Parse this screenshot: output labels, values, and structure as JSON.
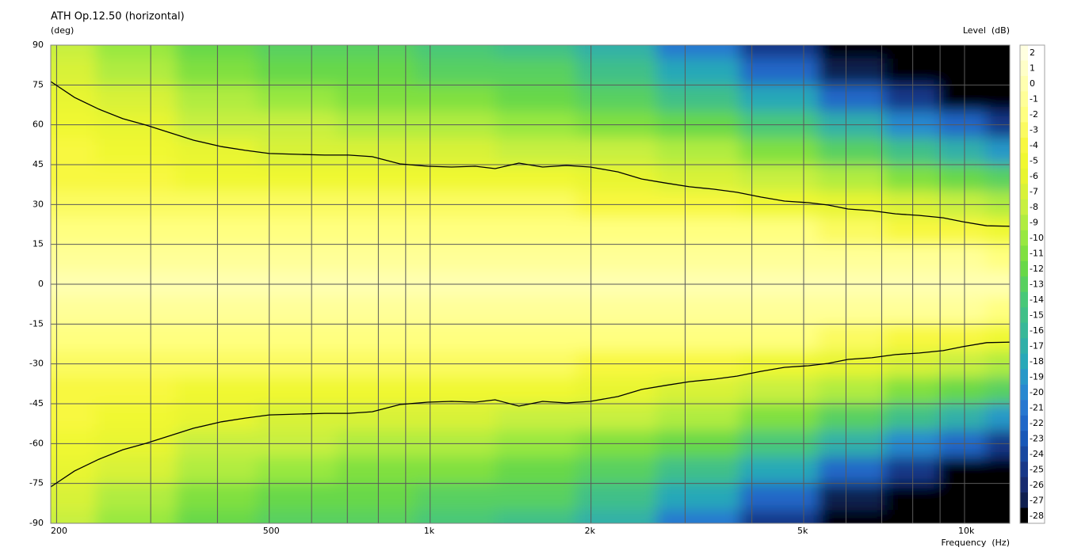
{
  "chart_data": {
    "type": "contour",
    "title": "ATH Op.12.50 (horizontal)",
    "y_label": "(deg)",
    "x_label": "Frequency  (Hz)",
    "colorbar_label": "Level  (dB)",
    "x_scale": "log",
    "xlim": [
      195,
      12150
    ],
    "ylim": [
      -90,
      90
    ],
    "xticks": [
      200,
      500,
      {
        "value": 1000,
        "label": "1k"
      },
      {
        "value": 2000,
        "label": "2k"
      },
      {
        "value": 5000,
        "label": "5k"
      },
      {
        "value": 10000,
        "label": "10k"
      }
    ],
    "x_minor_grid": [
      300,
      400,
      600,
      700,
      800,
      900,
      3000,
      4000,
      6000,
      7000,
      8000,
      9000
    ],
    "yticks": [
      -90,
      -75,
      -60,
      -45,
      -30,
      -15,
      0,
      15,
      30,
      45,
      60,
      75,
      90
    ],
    "grid": true,
    "x": [
      200,
      280,
      400,
      560,
      800,
      1100,
      1600,
      2200,
      3200,
      4500,
      6300,
      8000,
      10000,
      12000
    ],
    "y": [
      90,
      80,
      70,
      60,
      50,
      40,
      30,
      20,
      10,
      0,
      -10,
      -20,
      -30,
      -40,
      -50,
      -60,
      -70,
      -80,
      -90
    ],
    "z": [
      [
        -8,
        -10,
        -12,
        -12.5,
        -13,
        -13.5,
        -15,
        -17,
        -21,
        -25,
        -29,
        -30,
        -30,
        -30
      ],
      [
        -6.5,
        -8.5,
        -10.5,
        -11.5,
        -12,
        -12.5,
        -13,
        -15,
        -18,
        -22,
        -27,
        -29,
        -30,
        -30
      ],
      [
        -5.5,
        -7,
        -9,
        -10,
        -10.5,
        -11,
        -11.5,
        -13,
        -15,
        -18,
        -22,
        -25,
        -28,
        -29
      ],
      [
        -5,
        -5.7,
        -7.5,
        -8,
        -8.5,
        -9,
        -9.5,
        -10.5,
        -12,
        -14,
        -17,
        -20,
        -22,
        -25
      ],
      [
        -4,
        -4.5,
        -5.8,
        -6.2,
        -6.5,
        -7,
        -7.2,
        -8,
        -9,
        -10.5,
        -13,
        -15,
        -17,
        -19
      ],
      [
        -3.5,
        -3.5,
        -4.5,
        -4.5,
        -4.7,
        -5,
        -5,
        -5.5,
        -6.5,
        -7.5,
        -9,
        -10.5,
        -12,
        -13
      ],
      [
        -2.5,
        -2.5,
        -3,
        -3,
        -3,
        -3,
        -3,
        -3.5,
        -4,
        -4.5,
        -6,
        -7,
        -8,
        -9
      ],
      [
        -1.5,
        -1.5,
        -1.5,
        -1.5,
        -1.5,
        -1.5,
        -1.5,
        -1.5,
        -2,
        -2,
        -3,
        -3.5,
        -4,
        -4.5
      ],
      [
        -0.5,
        -0.5,
        -0.5,
        -0.5,
        -0.5,
        -0.5,
        -0.5,
        -0.5,
        -0.5,
        -0.5,
        -1,
        -1,
        -1,
        -1.5
      ],
      [
        0,
        0,
        0,
        0,
        0,
        0,
        0,
        0,
        0,
        0,
        0,
        0,
        0,
        0
      ],
      [
        -0.5,
        -0.5,
        -0.5,
        -0.5,
        -0.5,
        -0.5,
        -0.5,
        -0.5,
        -0.5,
        -0.5,
        -1,
        -1,
        -1,
        -1.5
      ],
      [
        -1.5,
        -1.5,
        -1.5,
        -1.5,
        -1.5,
        -1.5,
        -1.5,
        -1.5,
        -2,
        -2,
        -3,
        -3.5,
        -4,
        -4.5
      ],
      [
        -2.5,
        -2.5,
        -3,
        -3,
        -3,
        -3,
        -3,
        -3.5,
        -4,
        -4.5,
        -6,
        -7,
        -8,
        -9
      ],
      [
        -3.5,
        -3.5,
        -4.5,
        -4.5,
        -4.7,
        -5,
        -5,
        -5.5,
        -6.5,
        -7.5,
        -9,
        -10.5,
        -12,
        -13
      ],
      [
        -4,
        -4.5,
        -5.8,
        -6.2,
        -6.5,
        -7,
        -7.2,
        -8,
        -9,
        -10.5,
        -13,
        -15,
        -17,
        -19
      ],
      [
        -5,
        -5.7,
        -7.5,
        -8,
        -8.5,
        -9,
        -9.5,
        -10.5,
        -12,
        -14,
        -17,
        -20,
        -22,
        -25
      ],
      [
        -5.5,
        -7,
        -9,
        -10,
        -10.5,
        -11,
        -11.5,
        -13,
        -15,
        -18,
        -22,
        -25,
        -28,
        -29
      ],
      [
        -6.5,
        -8.5,
        -10.5,
        -11.5,
        -12,
        -12.5,
        -13,
        -15,
        -18,
        -22,
        -27,
        -29,
        -30,
        -30
      ],
      [
        -8,
        -10,
        -12,
        -12.5,
        -13,
        -13.5,
        -15,
        -17,
        -21,
        -25,
        -29,
        -30,
        -30,
        -30
      ]
    ],
    "colorbar": {
      "levels": [
        2,
        1,
        0,
        -1,
        -2,
        -3,
        -4,
        -5,
        -6,
        -7,
        -8,
        -9,
        -10,
        -11,
        -12,
        -13,
        -14,
        -15,
        -16,
        -17,
        -18,
        -19,
        -20,
        -21,
        -22,
        -23,
        -24,
        -25,
        -26,
        -27,
        -28
      ],
      "colors": [
        "#ffffe0",
        "#ffffc8",
        "#ffffb0",
        "#ffff98",
        "#ffff80",
        "#fbfb60",
        "#f8f840",
        "#f0f830",
        "#e8f530",
        "#d8f238",
        "#c8f040",
        "#b0ec40",
        "#98e840",
        "#80e040",
        "#68d848",
        "#58d060",
        "#48c878",
        "#40c088",
        "#38b898",
        "#30b0a8",
        "#28a8b8",
        "#2898c8",
        "#2888d0",
        "#2878d0",
        "#2068c8",
        "#1858b8",
        "#1848a0",
        "#183888",
        "#182c70",
        "#102050",
        "#000000"
      ]
    },
    "isolines": [
      {
        "color": "#000000",
        "x": [
          195,
          216,
          240,
          266,
          294,
          361,
          407,
          451,
          500,
          635,
          704,
          779,
          878,
          990,
          1097,
          1215,
          1323,
          1466,
          1624,
          1799,
          1994,
          2246,
          2489,
          2758,
          3056,
          3385,
          3751,
          4156,
          4605,
          5103,
          5556,
          6051,
          6705,
          7429,
          8232,
          9120,
          9931,
          11003,
          12150
        ],
        "y": [
          76.3,
          70.3,
          65.9,
          62.3,
          59.9,
          54.2,
          51.8,
          50.4,
          49.2,
          48.6,
          48.6,
          48,
          45.3,
          44.4,
          44.1,
          44.4,
          43.5,
          45.6,
          44.1,
          44.7,
          44.1,
          42.3,
          39.6,
          38.1,
          36.7,
          35.8,
          34.6,
          32.8,
          31.3,
          30.7,
          29.8,
          28.3,
          27.7,
          26.5,
          25.9,
          25,
          23.5,
          22,
          21.8
        ]
      },
      {
        "color": "#000000",
        "x": [
          195,
          216,
          240,
          266,
          294,
          361,
          407,
          451,
          500,
          635,
          704,
          779,
          878,
          990,
          1097,
          1215,
          1323,
          1466,
          1624,
          1799,
          1994,
          2246,
          2489,
          2758,
          3056,
          3385,
          3751,
          4156,
          4605,
          5103,
          5556,
          6051,
          6705,
          7429,
          8232,
          9120,
          9931,
          11003,
          12150
        ],
        "y": [
          -76.3,
          -70.3,
          -65.9,
          -62.3,
          -59.9,
          -54.2,
          -51.8,
          -50.4,
          -49.2,
          -48.6,
          -48.6,
          -48,
          -45.3,
          -44.4,
          -44.1,
          -44.4,
          -43.5,
          -45.9,
          -44.1,
          -44.7,
          -44.1,
          -42.3,
          -39.6,
          -38.1,
          -36.7,
          -35.8,
          -34.6,
          -32.8,
          -31.3,
          -30.7,
          -29.8,
          -28.3,
          -27.7,
          -26.5,
          -25.9,
          -25,
          -23.5,
          -22,
          -21.8
        ]
      }
    ]
  }
}
